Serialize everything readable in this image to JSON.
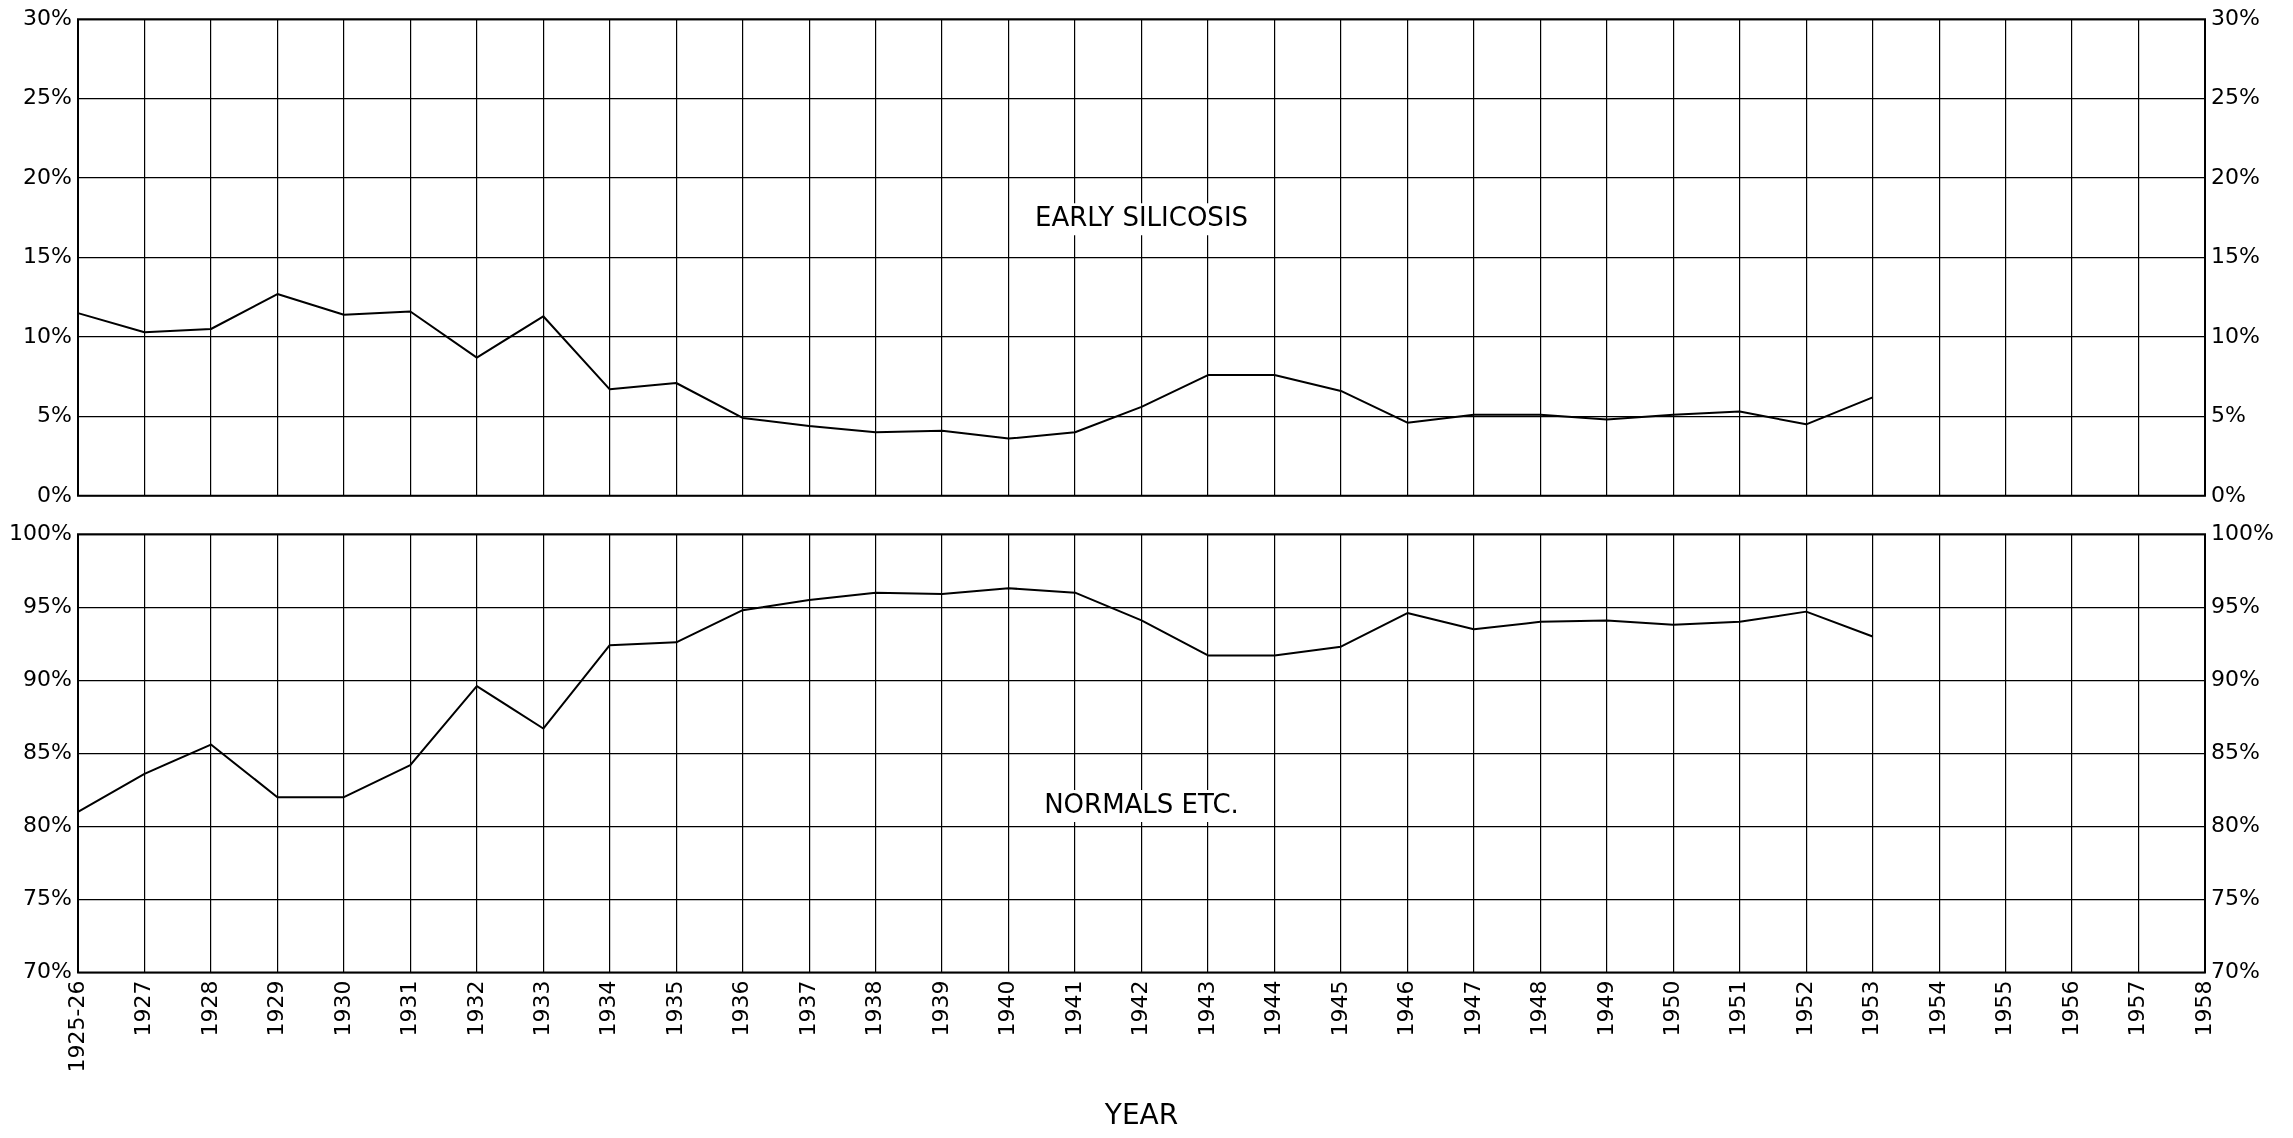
{
  "chart_data": [
    {
      "type": "line",
      "categories": [
        "1925-26",
        "1927",
        "1928",
        "1929",
        "1930",
        "1931",
        "1932",
        "1933",
        "1934",
        "1935",
        "1936",
        "1937",
        "1938",
        "1939",
        "1940",
        "1941",
        "1942",
        "1943",
        "1944",
        "1945",
        "1946",
        "1947",
        "1948",
        "1949",
        "1950",
        "1951",
        "1952",
        "1953",
        "1954",
        "1955",
        "1956",
        "1957",
        "1958"
      ],
      "series": [
        {
          "name": "EARLY SILICOSIS",
          "color": "#000000",
          "values": [
            11.5,
            10.3,
            10.5,
            12.7,
            11.4,
            11.6,
            8.7,
            11.3,
            6.7,
            7.1,
            4.9,
            4.4,
            4.0,
            4.1,
            3.6,
            4.0,
            5.6,
            7.6,
            7.6,
            6.6,
            4.6,
            5.1,
            5.1,
            4.8,
            5.1,
            5.3,
            4.5,
            6.2,
            null,
            null,
            null,
            null,
            null
          ]
        }
      ],
      "ylim": [
        0,
        30
      ],
      "yticks": [
        {
          "value": 0,
          "label": "0%"
        },
        {
          "value": 5,
          "label": "5%"
        },
        {
          "value": 10,
          "label": "10%"
        },
        {
          "value": 15,
          "label": "15%"
        },
        {
          "value": 20,
          "label": "20%"
        },
        {
          "value": 25,
          "label": "25%"
        },
        {
          "value": 30,
          "label": "30%"
        }
      ],
      "y2lim": [
        0,
        30
      ],
      "y2ticks": [
        {
          "value": 0,
          "label": "0%"
        },
        {
          "value": 5,
          "label": "5%"
        },
        {
          "value": 10,
          "label": "10%"
        },
        {
          "value": 15,
          "label": "15%"
        },
        {
          "value": 20,
          "label": "20%"
        },
        {
          "value": 25,
          "label": "25%"
        },
        {
          "value": 30,
          "label": "30%"
        }
      ],
      "grid": true,
      "tick_labels": "y",
      "marker": "none",
      "line_style": "solid"
    },
    {
      "type": "line",
      "xlabel": "YEAR",
      "categories": [
        "1925-26",
        "1927",
        "1928",
        "1929",
        "1930",
        "1931",
        "1932",
        "1933",
        "1934",
        "1935",
        "1936",
        "1937",
        "1938",
        "1939",
        "1940",
        "1941",
        "1942",
        "1943",
        "1944",
        "1945",
        "1946",
        "1947",
        "1948",
        "1949",
        "1950",
        "1951",
        "1952",
        "1953",
        "1954",
        "1955",
        "1956",
        "1957",
        "1958"
      ],
      "series": [
        {
          "name": "NORMALS ETC.",
          "color": "#000000",
          "values": [
            81.0,
            83.6,
            85.6,
            82.0,
            82.0,
            84.2,
            89.6,
            86.7,
            92.4,
            92.6,
            94.8,
            95.5,
            96.0,
            95.9,
            96.3,
            96.0,
            94.1,
            91.7,
            91.7,
            92.3,
            94.6,
            93.5,
            94.0,
            94.1,
            93.8,
            94.0,
            94.7,
            93.0,
            null,
            null,
            null,
            null,
            null
          ]
        }
      ],
      "ylim": [
        70,
        100
      ],
      "yticks": [
        {
          "value": 70,
          "label": "70%"
        },
        {
          "value": 75,
          "label": "75%"
        },
        {
          "value": 80,
          "label": "80%"
        },
        {
          "value": 85,
          "label": "85%"
        },
        {
          "value": 90,
          "label": "90%"
        },
        {
          "value": 95,
          "label": "95%"
        },
        {
          "value": 100,
          "label": "100%"
        }
      ],
      "y2lim": [
        70,
        100
      ],
      "y2ticks": [
        {
          "value": 70,
          "label": "70%"
        },
        {
          "value": 75,
          "label": "75%"
        },
        {
          "value": 80,
          "label": "80%"
        },
        {
          "value": 85,
          "label": "85%"
        },
        {
          "value": 90,
          "label": "90%"
        },
        {
          "value": 95,
          "label": "95%"
        },
        {
          "value": 100,
          "label": "100%"
        }
      ],
      "grid": true,
      "marker": "none",
      "line_style": "solid"
    }
  ]
}
